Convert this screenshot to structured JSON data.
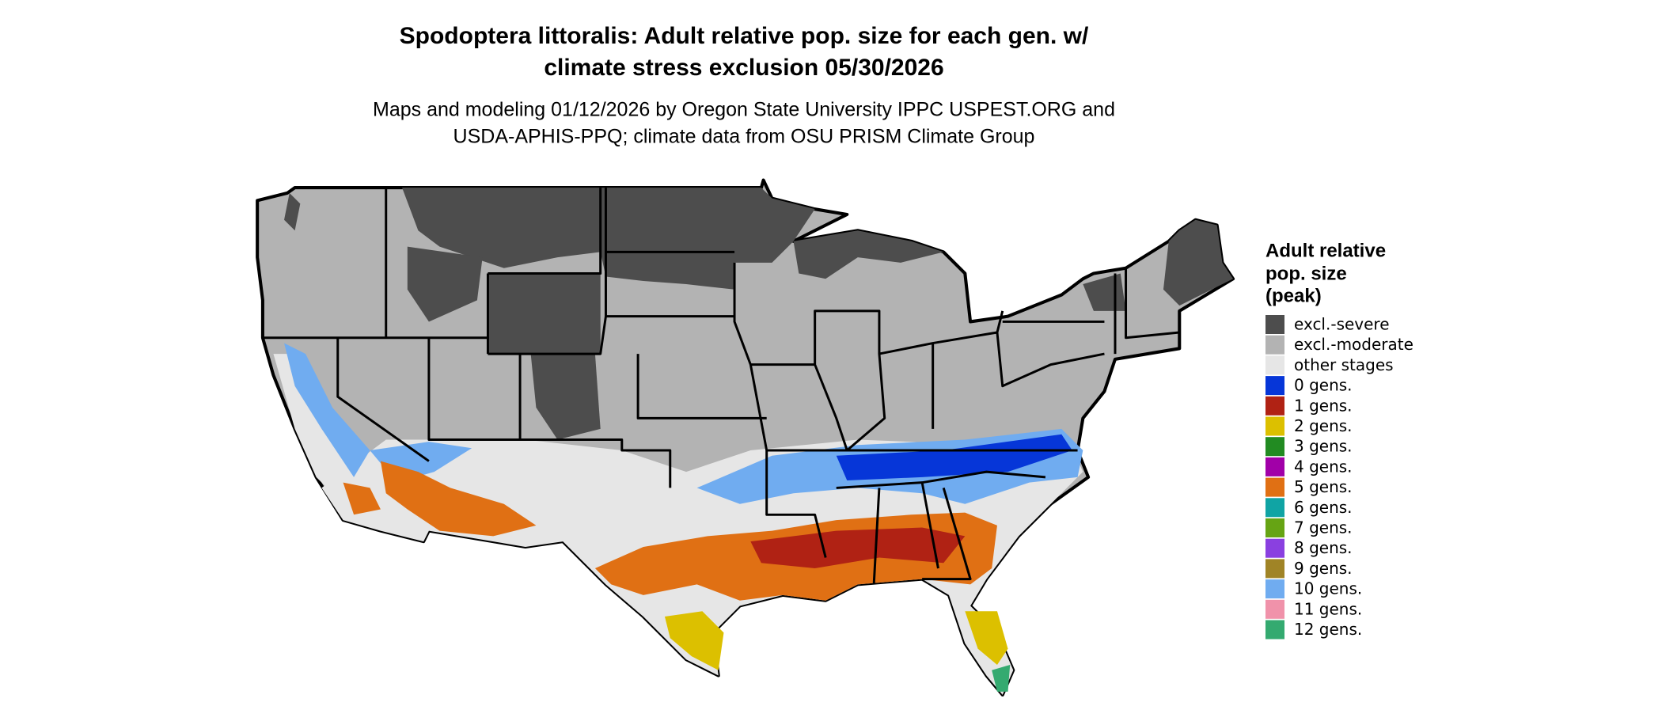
{
  "title": [
    "Spodoptera littoralis: Adult relative pop. size for each gen. w/",
    "climate stress exclusion 05/30/2026"
  ],
  "subtitle": [
    "Maps and modeling 01/12/2026 by Oregon State University IPPC USPEST.ORG and",
    "USDA-APHIS-PPQ; climate data from OSU PRISM Climate Group"
  ],
  "legend": {
    "title": [
      "Adult relative",
      "pop. size",
      "(peak)"
    ],
    "items": [
      {
        "label": "excl.-severe",
        "color": "#4d4d4d"
      },
      {
        "label": "excl.-moderate",
        "color": "#b3b3b3"
      },
      {
        "label": "other stages",
        "color": "#e6e6e6"
      },
      {
        "label": "0 gens.",
        "color": "#0636d8"
      },
      {
        "label": "1 gens.",
        "color": "#b02214"
      },
      {
        "label": "2 gens.",
        "color": "#dcc000"
      },
      {
        "label": "3 gens.",
        "color": "#228b22"
      },
      {
        "label": "4 gens.",
        "color": "#a100a8"
      },
      {
        "label": "5 gens.",
        "color": "#e07014"
      },
      {
        "label": "6 gens.",
        "color": "#10a4a4"
      },
      {
        "label": "7 gens.",
        "color": "#66a414"
      },
      {
        "label": "8 gens.",
        "color": "#8a40e0"
      },
      {
        "label": "9 gens.",
        "color": "#a08426"
      },
      {
        "label": "10 gens.",
        "color": "#70acf0"
      },
      {
        "label": "11 gens.",
        "color": "#f092aa"
      },
      {
        "label": "12 gens.",
        "color": "#34aa70"
      }
    ]
  }
}
